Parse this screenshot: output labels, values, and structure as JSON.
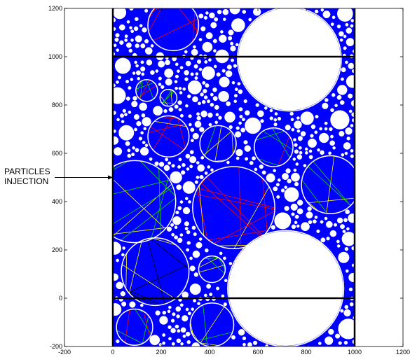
{
  "chart_data": {
    "type": "scatter",
    "title": "",
    "xlabel": "",
    "ylabel": "",
    "xlim": [
      -200,
      1200
    ],
    "ylim": [
      -200,
      1200
    ],
    "xticks": [
      "-200",
      "0",
      "200",
      "400",
      "600",
      "800",
      "1000",
      "1200"
    ],
    "yticks": [
      "-200",
      "0",
      "200",
      "400",
      "600",
      "800",
      "1000",
      "1200"
    ],
    "grid": false,
    "annotation": {
      "lines": [
        "PARTICLES",
        "INJECTION"
      ],
      "arrow_to": [
        0,
        500
      ]
    },
    "domain": {
      "x_walls": [
        0,
        1000
      ],
      "y_lines": [
        0,
        1000
      ]
    },
    "large_particles": [
      {
        "x": 250,
        "y": 1130,
        "r": 105
      },
      {
        "x": 730,
        "y": 990,
        "r": 215
      },
      {
        "x": 140,
        "y": 860,
        "r": 45
      },
      {
        "x": 230,
        "y": 830,
        "r": 35
      },
      {
        "x": 230,
        "y": 670,
        "r": 85
      },
      {
        "x": 435,
        "y": 640,
        "r": 75
      },
      {
        "x": 665,
        "y": 625,
        "r": 80
      },
      {
        "x": 90,
        "y": 400,
        "r": 170
      },
      {
        "x": 500,
        "y": 375,
        "r": 170
      },
      {
        "x": 900,
        "y": 470,
        "r": 120
      },
      {
        "x": 175,
        "y": 110,
        "r": 140
      },
      {
        "x": 410,
        "y": 120,
        "r": 55
      },
      {
        "x": 715,
        "y": 40,
        "r": 240
      },
      {
        "x": 410,
        "y": -110,
        "r": 90
      },
      {
        "x": 90,
        "y": -120,
        "r": 75
      }
    ],
    "trajectory_colors": {
      "red": "#ff0000",
      "yellow": "#ffff00",
      "green": "#00dd00",
      "black": "#000000"
    },
    "pore_fill_color": "#0000ff"
  }
}
